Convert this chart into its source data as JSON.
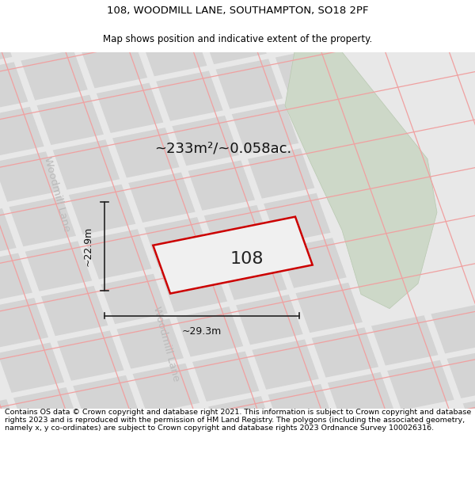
{
  "title_line1": "108, WOODMILL LANE, SOUTHAMPTON, SO18 2PF",
  "title_line2": "Map shows position and indicative extent of the property.",
  "footer_text": "Contains OS data © Crown copyright and database right 2021. This information is subject to Crown copyright and database rights 2023 and is reproduced with the permission of HM Land Registry. The polygons (including the associated geometry, namely x, y co-ordinates) are subject to Crown copyright and database rights 2023 Ordnance Survey 100026316.",
  "area_label": "~233m²/~0.058ac.",
  "label_108": "108",
  "dim_height": "~22.9m",
  "dim_width": "~29.3m",
  "street_label": "Woodmill Lane",
  "map_bg": "#e8e8e8",
  "parcel_color": "#d8d8d8",
  "parcel_edge": "#c8c8c8",
  "road_line_color": "#f0a0a0",
  "green_color": "#cdd8ca",
  "green_edge": "#b8c8b4",
  "property_fill": "#f0f0f0",
  "property_edge": "#cc0000",
  "dim_color": "#222222",
  "street_color": "#bbbbbb",
  "title_fontsize": 9.5,
  "subtitle_fontsize": 8.5,
  "footer_fontsize": 6.8,
  "area_fontsize": 13,
  "label_fontsize": 16,
  "dim_fontsize": 9,
  "street_fontsize": 9.5
}
